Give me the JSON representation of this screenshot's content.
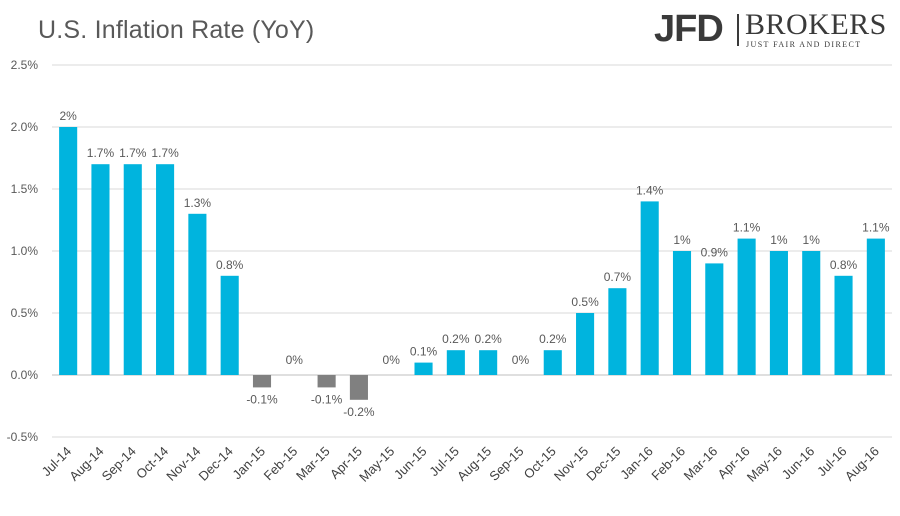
{
  "chart_data": {
    "type": "bar",
    "title": "U.S. Inflation Rate (YoY)",
    "categories": [
      "Jul-14",
      "Aug-14",
      "Sep-14",
      "Oct-14",
      "Nov-14",
      "Dec-14",
      "Jan-15",
      "Feb-15",
      "Mar-15",
      "Apr-15",
      "May-15",
      "Jun-15",
      "Jul-15",
      "Aug-15",
      "Sep-15",
      "Oct-15",
      "Nov-15",
      "Dec-15",
      "Jan-16",
      "Feb-16",
      "Mar-16",
      "Apr-16",
      "May-16",
      "Jun-16",
      "Jul-16",
      "Aug-16"
    ],
    "values": [
      2.0,
      1.7,
      1.7,
      1.7,
      1.3,
      0.8,
      -0.1,
      0,
      -0.1,
      -0.2,
      0,
      0.1,
      0.2,
      0.2,
      0,
      0.2,
      0.5,
      0.7,
      1.4,
      1.0,
      0.9,
      1.1,
      1.0,
      1.0,
      0.8,
      1.1
    ],
    "data_labels": [
      "2%",
      "1.7%",
      "1.7%",
      "1.7%",
      "1.3%",
      "0.8%",
      "-0.1%",
      "0%",
      "-0.1%",
      "-0.2%",
      "0%",
      "0.1%",
      "0.2%",
      "0.2%",
      "0%",
      "0.2%",
      "0.5%",
      "0.7%",
      "1.4%",
      "1%",
      "0.9%",
      "1.1%",
      "1%",
      "1%",
      "0.8%",
      "1.1%"
    ],
    "yticks": [
      -0.5,
      0.0,
      0.5,
      1.0,
      1.5,
      2.0,
      2.5
    ],
    "ytick_labels": [
      "-0.5%",
      "0.0%",
      "0.5%",
      "1.0%",
      "1.5%",
      "2.0%",
      "2.5%"
    ],
    "ylim": [
      -0.5,
      2.5
    ],
    "xlabel": "",
    "ylabel": "",
    "grid": true,
    "colors": {
      "positive": "#00B4DE",
      "negative": "#808080",
      "grid": "#D9D9D9",
      "axis": "#BFBFBF"
    }
  },
  "logo": {
    "mark": "JFD",
    "name": "BROKERS",
    "tagline": "JUST FAIR AND DIRECT"
  }
}
